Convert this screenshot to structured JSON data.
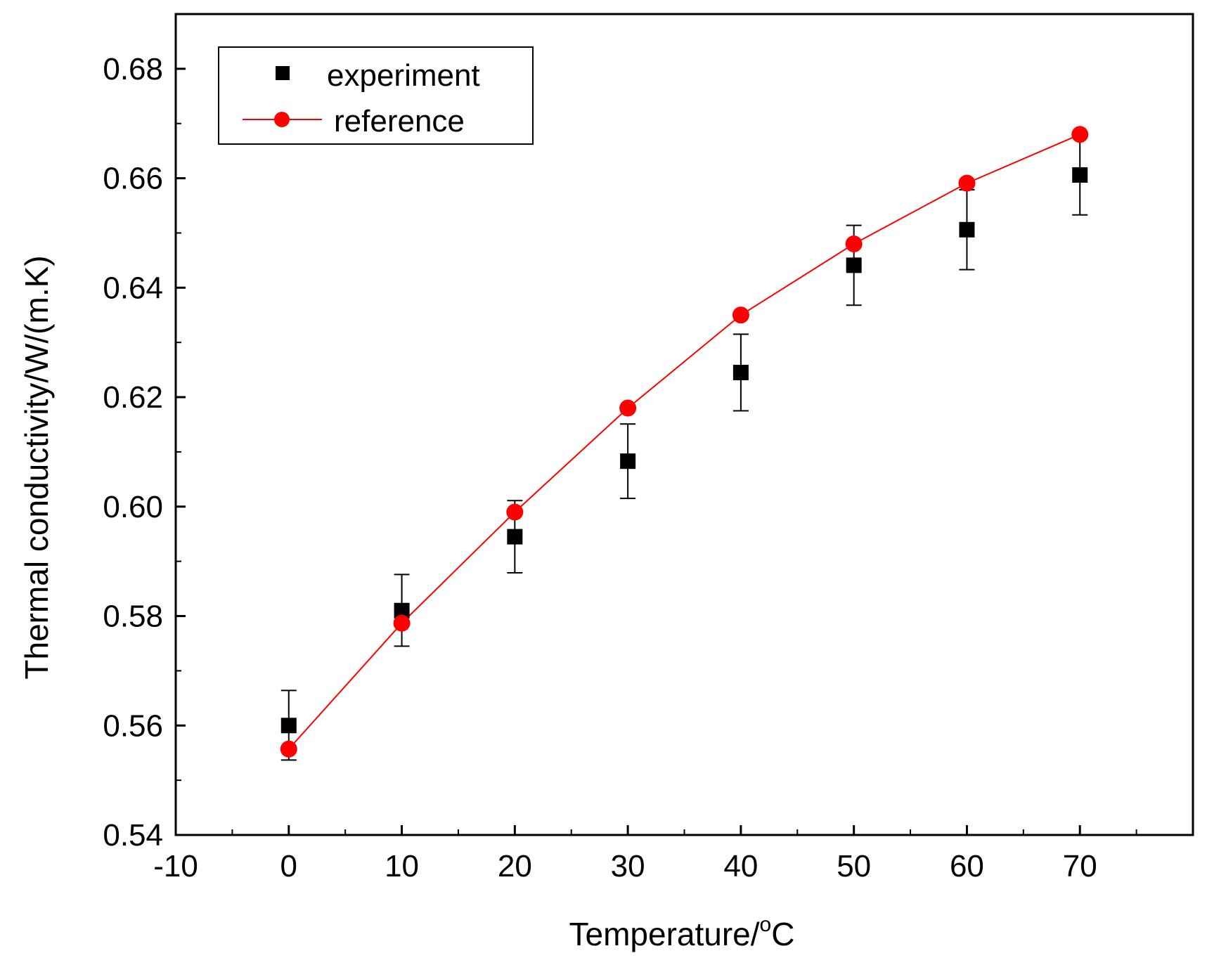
{
  "chart_data": {
    "type": "scatter",
    "title": "",
    "xlabel": "Temperature/",
    "xlabel_unit_sup": "o",
    "xlabel_unit": "C",
    "ylabel": "Thermal conductivity/W/(m.K)",
    "xlim": [
      -10,
      80
    ],
    "ylim": [
      0.54,
      0.69
    ],
    "x_ticks": [
      -10,
      0,
      10,
      20,
      30,
      40,
      50,
      60,
      70
    ],
    "x_tick_labels": [
      "-10",
      "0",
      "10",
      "20",
      "30",
      "40",
      "50",
      "60",
      "70"
    ],
    "y_ticks": [
      0.54,
      0.56,
      0.58,
      0.6,
      0.62,
      0.64,
      0.66,
      0.68
    ],
    "y_tick_labels": [
      "0.54",
      "0.56",
      "0.58",
      "0.60",
      "0.62",
      "0.64",
      "0.66",
      "0.68"
    ],
    "legend_position": "top-left",
    "series": [
      {
        "name": "experiment",
        "style": "square-markers-with-error-bars",
        "color": "#000000",
        "x": [
          0,
          10,
          20,
          30,
          40,
          50,
          60,
          70
        ],
        "y": [
          0.56,
          0.581,
          0.5945,
          0.6083,
          0.6245,
          0.6441,
          0.6506,
          0.6606
        ],
        "err_low": [
          0.0063,
          0.0065,
          0.0066,
          0.0068,
          0.007,
          0.0073,
          0.0073,
          0.0073
        ],
        "err_high": [
          0.0064,
          0.0066,
          0.0066,
          0.0068,
          0.007,
          0.0073,
          0.0073,
          0.0074
        ]
      },
      {
        "name": "reference",
        "style": "line-with-circle-markers",
        "color": "#ff0000",
        "x": [
          0,
          10,
          20,
          30,
          40,
          50,
          60,
          70
        ],
        "y": [
          0.5557,
          0.5787,
          0.599,
          0.618,
          0.635,
          0.648,
          0.6591,
          0.668
        ]
      }
    ]
  }
}
